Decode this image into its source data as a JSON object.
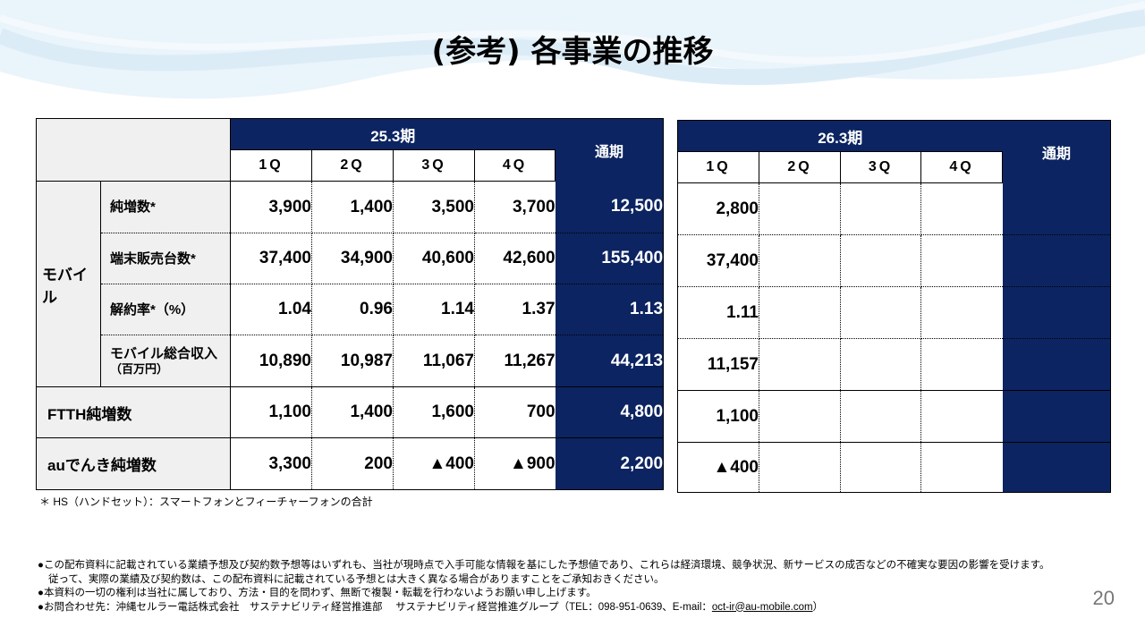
{
  "title": "(参考) 各事業の推移",
  "colors": {
    "navy": "#0c2461",
    "label_bg": "#f0f0f0"
  },
  "table_2025": {
    "period": "25.3期",
    "quarters": [
      "1Q",
      "2Q",
      "3Q",
      "4Q"
    ],
    "full_year": "通期",
    "mobile_label": "モバイル",
    "rows": [
      {
        "label": "純増数*",
        "values": [
          "3,900",
          "1,400",
          "3,500",
          "3,700"
        ],
        "full": "12,500"
      },
      {
        "label": "端末販売台数*",
        "values": [
          "37,400",
          "34,900",
          "40,600",
          "42,600"
        ],
        "full": "155,400"
      },
      {
        "label": "解約率*（%）",
        "values": [
          "1.04",
          "0.96",
          "1.14",
          "1.37"
        ],
        "full": "1.13"
      },
      {
        "label": "モバイル総合収入",
        "sublabel": "（百万円）",
        "values": [
          "10,890",
          "10,987",
          "11,067",
          "11,267"
        ],
        "full": "44,213"
      },
      {
        "label": "FTTH純増数",
        "values": [
          "1,100",
          "1,400",
          "1,600",
          "700"
        ],
        "full": "4,800"
      },
      {
        "label": "auでんき純増数",
        "values": [
          "3,300",
          "200",
          "▲400",
          "▲900"
        ],
        "full": "2,200"
      }
    ]
  },
  "table_2026": {
    "period": "26.3期",
    "quarters": [
      "1Q",
      "2Q",
      "3Q",
      "4Q"
    ],
    "full_year": "通期",
    "values": [
      "2,800",
      "37,400",
      "1.11",
      "11,157",
      "1,100",
      "▲400"
    ]
  },
  "footnote": "＊ HS（ハンドセット）：スマートフォンとフィーチャーフォンの合計",
  "disclaimer": {
    "line1": "●この配布資料に記載されている業績予想及び契約数予想等はいずれも、当社が現時点で入手可能な情報を基にした予想値であり、これらは経済環境、競争状況、新サービスの成否などの不確実な要因の影響を受けます。",
    "line2": "従って、実際の業績及び契約数は、この配布資料に記載されている予想とは大きく異なる場合がありますことをご承知おきください。",
    "line3": "●本資料の一切の権利は当社に属しており、方法・目的を問わず、無断で複製・転載を行わないようお願い申し上げます。",
    "line4_prefix": "●お問合わせ先：沖縄セルラー電話株式会社　サステナビリティ経営推進部　 サステナビリティ経営推進グループ（TEL：098-951-0639、E-mail：",
    "email": "oct-ir@au-mobile.com",
    "line4_suffix": "）"
  },
  "page_number": "20"
}
